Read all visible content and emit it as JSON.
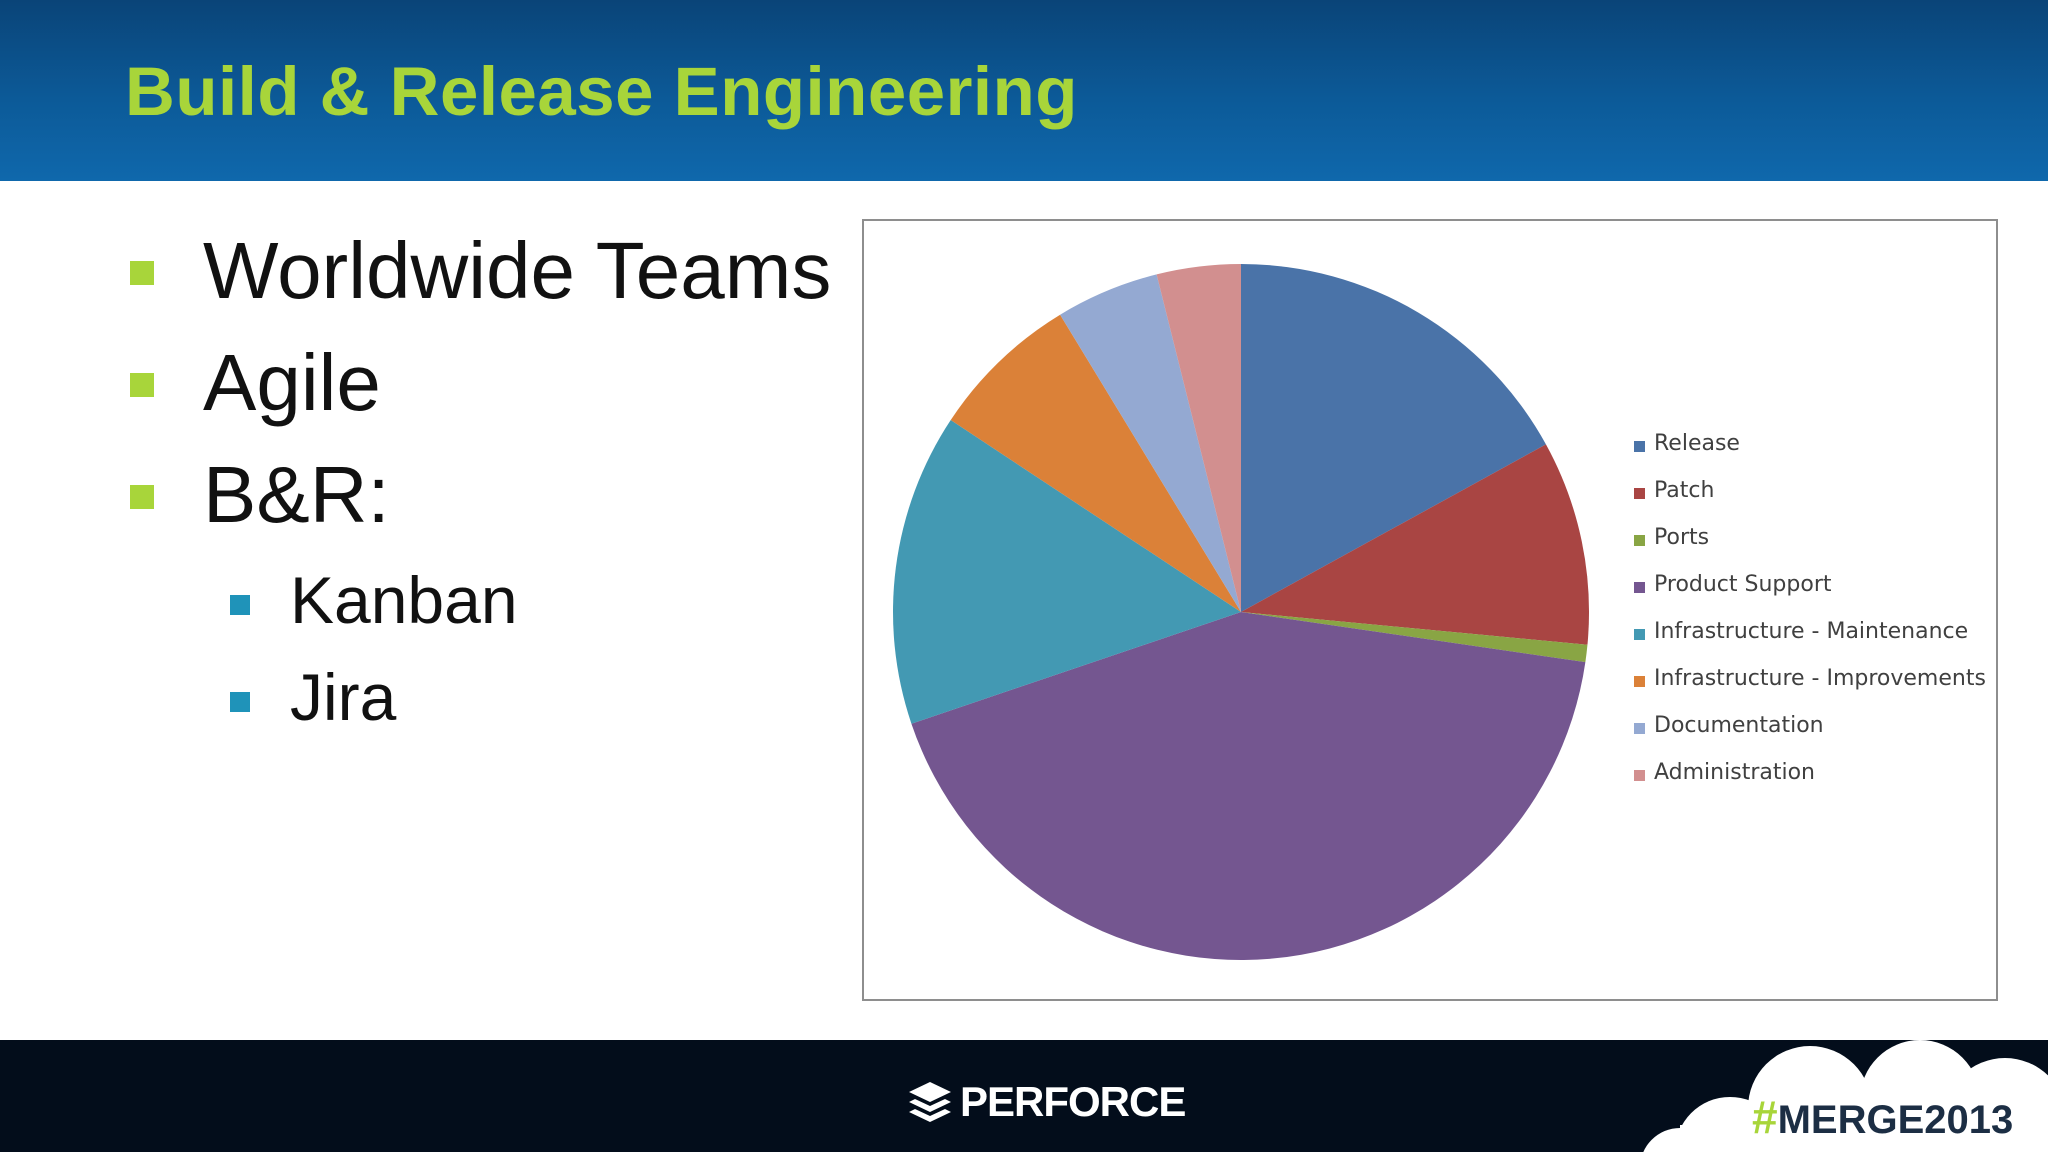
{
  "slide": {
    "title": "Build & Release Engineering",
    "bullets": [
      {
        "text": "Worldwide Teams",
        "level": 1
      },
      {
        "text": "Agile",
        "level": 1
      },
      {
        "text": "B&R:",
        "level": 1
      },
      {
        "text": "Kanban",
        "level": 2
      },
      {
        "text": "Jira",
        "level": 2
      }
    ]
  },
  "footer": {
    "logo_text": "PERFORCE",
    "hashtag_symbol": "#",
    "hashtag_text": "MERGE2013"
  },
  "colors": {
    "title": "#a8d53a",
    "bullet_level1": "#a8d53a",
    "bullet_level2": "#1f93b9",
    "header_background": "#0c5a98",
    "footer_background": "#030d1b"
  },
  "chart_data": {
    "type": "pie",
    "title": "",
    "start": "12 o'clock, clockwise",
    "categories": [
      "Release",
      "Patch",
      "Ports",
      "Product Support",
      "Infrastructure - Maintenance",
      "Infrastructure - Improvements",
      "Documentation",
      "Administration"
    ],
    "values": [
      17,
      9.5,
      0.8,
      42.5,
      14.5,
      7,
      4.8,
      3.9
    ],
    "colors": [
      "#4a73a8",
      "#a94543",
      "#89a544",
      "#745690",
      "#4399b3",
      "#db8138",
      "#94a9d2",
      "#d28f8f"
    ],
    "legend_position": "right"
  }
}
